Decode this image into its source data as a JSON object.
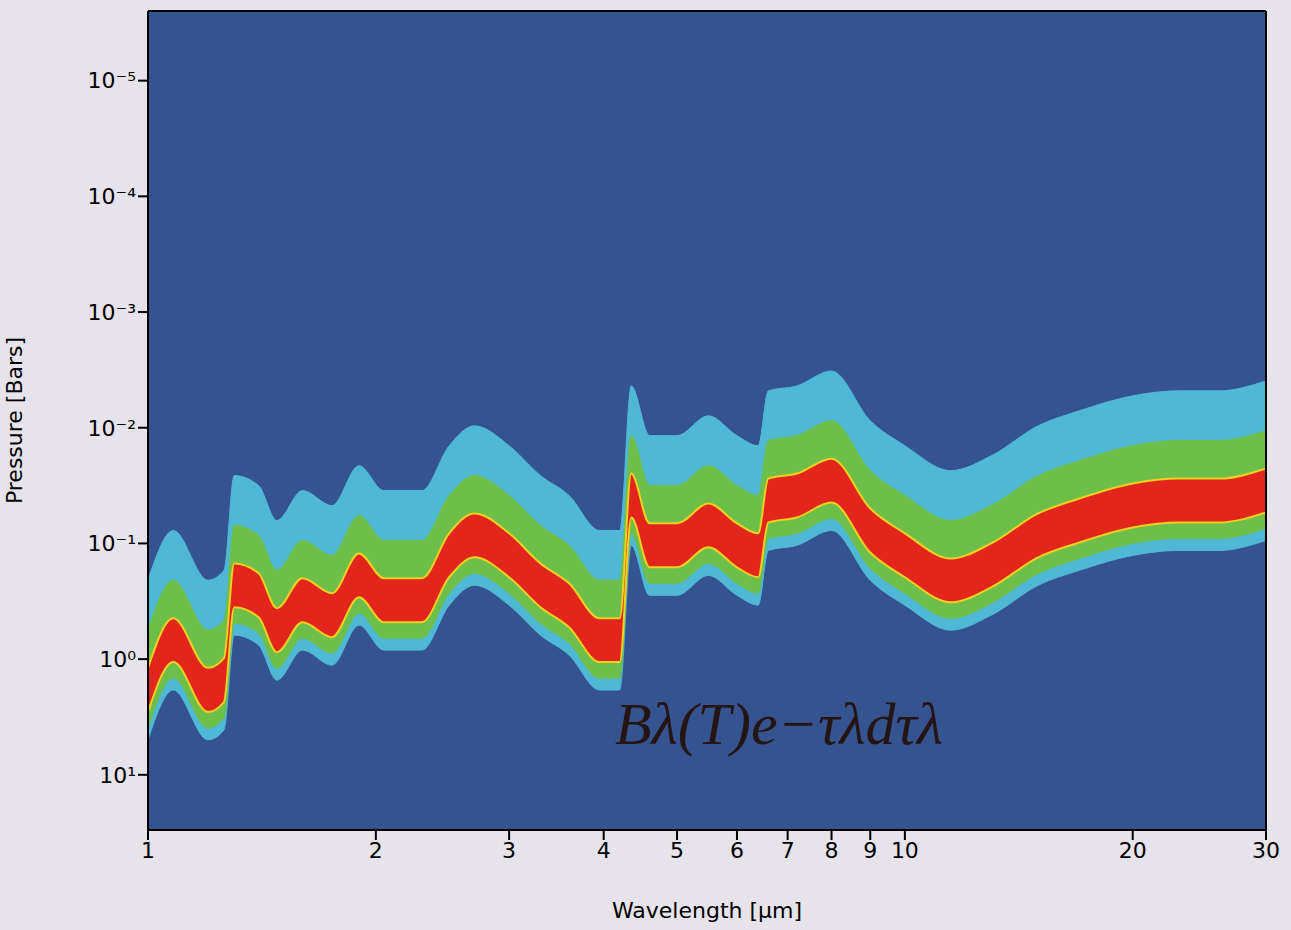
{
  "chart_data": {
    "type": "area",
    "xlabel": "Wavelength [μm]",
    "ylabel": "Pressure [Bars]",
    "annotations": [
      "Bλ(T)e−τλdτλ"
    ],
    "log": true,
    "x": [
      1.0,
      1.08,
      1.2,
      1.26,
      1.3,
      1.4,
      1.48,
      1.6,
      1.75,
      1.9,
      2.05,
      2.3,
      2.5,
      2.7,
      3.0,
      3.3,
      3.6,
      3.95,
      4.2,
      4.35,
      4.6,
      5.0,
      5.5,
      6.0,
      6.4,
      6.6,
      7.2,
      8.0,
      9.0,
      10.0,
      11.5,
      13.0,
      15.0,
      17.0,
      20.0,
      23.0,
      26.0,
      30.0
    ],
    "xlim": [
      1,
      30
    ],
    "xticks": [
      1,
      2,
      3,
      4,
      5,
      6,
      7,
      8,
      9,
      10,
      20,
      30
    ],
    "ylim": [
      30,
      2.5e-06
    ],
    "yticks": [
      {
        "value": 1e-05,
        "label": "10⁻⁵"
      },
      {
        "value": 0.0001,
        "label": "10⁻⁴"
      },
      {
        "value": 0.001,
        "label": "10⁻³"
      },
      {
        "value": 0.01,
        "label": "10⁻²"
      },
      {
        "value": 0.1,
        "label": "10⁻¹"
      },
      {
        "value": 1,
        "label": "10⁰"
      },
      {
        "value": 10,
        "label": "10¹"
      }
    ],
    "series": [
      {
        "color": "#4fb8d4",
        "values": [
          [
            0.208,
            4.99
          ],
          [
            0.0773,
            1.85
          ],
          [
            0.208,
            4.99
          ],
          [
            0.171,
            4.09
          ],
          [
            0.0259,
            0.621
          ],
          [
            0.0316,
            0.757
          ],
          [
            0.0634,
            1.52
          ],
          [
            0.0349,
            0.836
          ],
          [
            0.0471,
            1.13
          ],
          [
            0.0213,
            0.509
          ],
          [
            0.0349,
            0.836
          ],
          [
            0.0349,
            0.836
          ],
          [
            0.0143,
            0.342
          ],
          [
            0.00962,
            0.23
          ],
          [
            0.0143,
            0.342
          ],
          [
            0.0259,
            0.621
          ],
          [
            0.0385,
            0.923
          ],
          [
            0.0773,
            1.85
          ],
          [
            0.0773,
            1.85
          ],
          [
            0.00435,
            0.104
          ],
          [
            0.0117,
            0.281
          ],
          [
            0.0117,
            0.281
          ],
          [
            0.00789,
            0.189
          ],
          [
            0.0117,
            0.281
          ],
          [
            0.0143,
            0.342
          ],
          [
            0.0048,
            0.115
          ],
          [
            0.00435,
            0.104
          ],
          [
            0.00323,
            0.0773
          ],
          [
            0.0087,
            0.208
          ],
          [
            0.0143,
            0.342
          ],
          [
            0.0235,
            0.562
          ],
          [
            0.0175,
            0.418
          ],
          [
            0.00962,
            0.23
          ],
          [
            0.00714,
            0.171
          ],
          [
            0.0053,
            0.127
          ],
          [
            0.0048,
            0.115
          ],
          [
            0.0048,
            0.115
          ],
          [
            0.00394,
            0.0942
          ]
        ]
      },
      {
        "color": "#6dbf4a",
        "values": [
          [
            0.56,
            3.94
          ],
          [
            0.208,
            1.46
          ],
          [
            0.56,
            3.94
          ],
          [
            0.461,
            3.23
          ],
          [
            0.07,
            0.49
          ],
          [
            0.0853,
            0.597
          ],
          [
            0.171,
            1.2
          ],
          [
            0.0942,
            0.659
          ],
          [
            0.127,
            0.889
          ],
          [
            0.0574,
            0.402
          ],
          [
            0.0942,
            0.659
          ],
          [
            0.0942,
            0.659
          ],
          [
            0.0385,
            0.27
          ],
          [
            0.0259,
            0.182
          ],
          [
            0.0385,
            0.27
          ],
          [
            0.07,
            0.49
          ],
          [
            0.104,
            0.728
          ],
          [
            0.208,
            1.46
          ],
          [
            0.208,
            1.46
          ],
          [
            0.0117,
            0.082
          ],
          [
            0.0316,
            0.221
          ],
          [
            0.0316,
            0.221
          ],
          [
            0.0213,
            0.149
          ],
          [
            0.0316,
            0.221
          ],
          [
            0.0385,
            0.27
          ],
          [
            0.0129,
            0.0906
          ],
          [
            0.0117,
            0.082
          ],
          [
            0.0087,
            0.061
          ],
          [
            0.0235,
            0.164
          ],
          [
            0.0385,
            0.27
          ],
          [
            0.0634,
            0.444
          ],
          [
            0.0471,
            0.33
          ],
          [
            0.0259,
            0.182
          ],
          [
            0.0193,
            0.135
          ],
          [
            0.0143,
            0.1
          ],
          [
            0.0129,
            0.0906
          ],
          [
            0.0129,
            0.0906
          ],
          [
            0.0106,
            0.0743
          ]
        ]
      },
      {
        "color": "#e3261b",
        "values": [
          [
            1.19,
            2.86
          ],
          [
            0.443,
            1.06
          ],
          [
            1.19,
            2.86
          ],
          [
            0.98,
            2.35
          ],
          [
            0.149,
            0.356
          ],
          [
            0.181,
            0.435
          ],
          [
            0.363,
            0.871
          ],
          [
            0.2,
            0.48
          ],
          [
            0.27,
            0.647
          ],
          [
            0.122,
            0.292
          ],
          [
            0.2,
            0.48
          ],
          [
            0.2,
            0.48
          ],
          [
            0.0818,
            0.196
          ],
          [
            0.0551,
            0.132
          ],
          [
            0.0818,
            0.196
          ],
          [
            0.149,
            0.356
          ],
          [
            0.221,
            0.53
          ],
          [
            0.443,
            1.06
          ],
          [
            0.443,
            1.06
          ],
          [
            0.0249,
            0.0597
          ],
          [
            0.0671,
            0.161
          ],
          [
            0.0671,
            0.161
          ],
          [
            0.0452,
            0.108
          ],
          [
            0.0671,
            0.161
          ],
          [
            0.0818,
            0.196
          ],
          [
            0.0275,
            0.0659
          ],
          [
            0.0249,
            0.0597
          ],
          [
            0.0185,
            0.0444
          ],
          [
            0.0499,
            0.12
          ],
          [
            0.0818,
            0.196
          ],
          [
            0.135,
            0.323
          ],
          [
            0.1,
            0.24
          ],
          [
            0.0551,
            0.132
          ],
          [
            0.0409,
            0.0982
          ],
          [
            0.0303,
            0.0728
          ],
          [
            0.0275,
            0.0659
          ],
          [
            0.0275,
            0.0659
          ],
          [
            0.0225,
            0.0541
          ]
        ]
      }
    ]
  }
}
